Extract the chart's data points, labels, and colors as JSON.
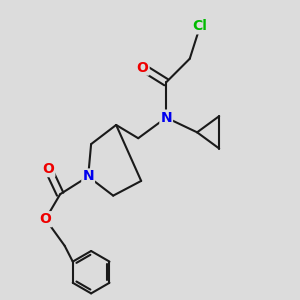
{
  "background_color": "#dcdcdc",
  "bond_color": "#1a1a1a",
  "atoms": {
    "Cl": {
      "color": "#00bb00",
      "fontsize": 10
    },
    "N": {
      "color": "#0000ee",
      "fontsize": 10
    },
    "O": {
      "color": "#ee0000",
      "fontsize": 10
    }
  },
  "figsize": [
    3.0,
    3.0
  ],
  "dpi": 100,
  "lw": 1.5
}
